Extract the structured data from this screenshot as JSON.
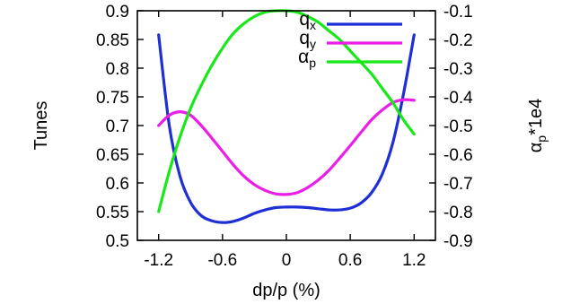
{
  "chart_data": {
    "type": "line",
    "xlabel": "dp/p (%)",
    "ylabel_left": "Tunes",
    "ylabel_right": "α_p*1e4",
    "ylabel_right_parts": {
      "symbol": "α",
      "subscript": "p",
      "rest": "*1e4"
    },
    "xlim": [
      -1.4,
      1.4
    ],
    "ylim_left": [
      0.5,
      0.9
    ],
    "ylim_right": [
      -0.9,
      -0.1
    ],
    "x_ticks": [
      -1.2,
      -0.6,
      0,
      0.6,
      1.2
    ],
    "x_tick_labels": [
      "-1.2",
      "-0.6",
      "0",
      "0.6",
      "1.2"
    ],
    "y_left_ticks": [
      0.5,
      0.55,
      0.6,
      0.65,
      0.7,
      0.75,
      0.8,
      0.85,
      0.9
    ],
    "y_left_tick_labels": [
      "0.5",
      "0.55",
      "0.6",
      "0.65",
      "0.7",
      "0.75",
      "0.8",
      "0.85",
      "0.9"
    ],
    "y_right_ticks": [
      -0.9,
      -0.8,
      -0.7,
      -0.6,
      -0.5,
      -0.4,
      -0.3,
      -0.2,
      -0.1
    ],
    "y_right_tick_labels": [
      "-0.9",
      "-0.8",
      "-0.7",
      "-0.6",
      "-0.5",
      "-0.4",
      "-0.3",
      "-0.2",
      "-0.1"
    ],
    "grid": false,
    "legend_position": "top-right",
    "series": [
      {
        "name": "q_x",
        "legend_main": "q",
        "legend_sub": "x",
        "axis": "left",
        "color": "#1f2fd6",
        "x": [
          -1.2,
          -1.1,
          -1.0,
          -0.9,
          -0.8,
          -0.7,
          -0.6,
          -0.5,
          -0.4,
          -0.3,
          -0.2,
          -0.1,
          0.0,
          0.1,
          0.2,
          0.3,
          0.4,
          0.5,
          0.6,
          0.7,
          0.8,
          0.9,
          1.0,
          1.1,
          1.2
        ],
        "y": [
          0.858,
          0.7,
          0.612,
          0.566,
          0.543,
          0.534,
          0.531,
          0.533,
          0.539,
          0.547,
          0.553,
          0.557,
          0.558,
          0.558,
          0.557,
          0.555,
          0.553,
          0.553,
          0.556,
          0.565,
          0.583,
          0.615,
          0.67,
          0.755,
          0.858
        ]
      },
      {
        "name": "q_y",
        "legend_main": "q",
        "legend_sub": "y",
        "axis": "left",
        "color": "#ea1ee6",
        "x": [
          -1.2,
          -1.1,
          -1.0,
          -0.9,
          -0.8,
          -0.7,
          -0.6,
          -0.5,
          -0.4,
          -0.3,
          -0.2,
          -0.1,
          0.0,
          0.1,
          0.2,
          0.3,
          0.4,
          0.5,
          0.6,
          0.7,
          0.8,
          0.9,
          1.0,
          1.1,
          1.2
        ],
        "y": [
          0.7,
          0.718,
          0.724,
          0.718,
          0.7,
          0.678,
          0.655,
          0.632,
          0.612,
          0.597,
          0.587,
          0.581,
          0.58,
          0.583,
          0.592,
          0.605,
          0.622,
          0.643,
          0.665,
          0.688,
          0.71,
          0.727,
          0.74,
          0.745,
          0.744
        ]
      },
      {
        "name": "α_p",
        "legend_main": "α",
        "legend_sub": "p",
        "axis": "right",
        "color": "#18e818",
        "x": [
          -1.2,
          -1.1,
          -1.0,
          -0.9,
          -0.8,
          -0.7,
          -0.6,
          -0.5,
          -0.4,
          -0.3,
          -0.2,
          -0.1,
          0.0,
          0.1,
          0.2,
          0.3,
          0.4,
          0.5,
          0.6,
          0.7,
          0.8,
          0.9,
          1.0,
          1.1,
          1.2
        ],
        "y": [
          -0.8,
          -0.66,
          -0.54,
          -0.44,
          -0.36,
          -0.29,
          -0.23,
          -0.18,
          -0.145,
          -0.12,
          -0.105,
          -0.1,
          -0.1,
          -0.105,
          -0.12,
          -0.14,
          -0.17,
          -0.2,
          -0.24,
          -0.28,
          -0.32,
          -0.37,
          -0.42,
          -0.48,
          -0.53
        ]
      }
    ]
  }
}
